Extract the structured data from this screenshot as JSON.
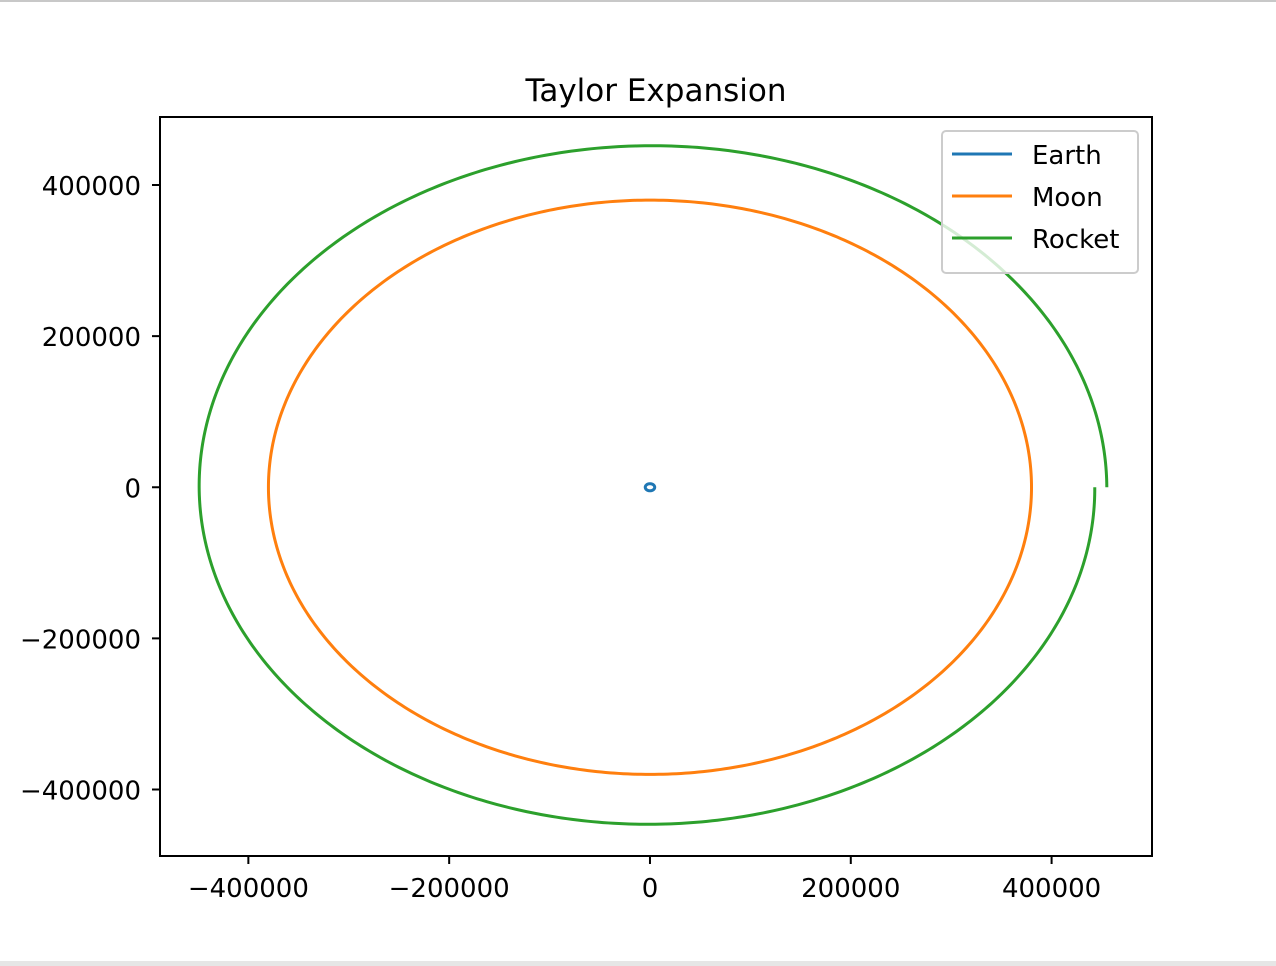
{
  "chart_data": {
    "type": "line",
    "title": "Taylor Expansion",
    "xlabel": "",
    "ylabel": "",
    "xlim": [
      -488000,
      500000
    ],
    "ylim": [
      -488000,
      490000
    ],
    "xticks": [
      -400000,
      -200000,
      0,
      200000,
      400000
    ],
    "yticks": [
      -400000,
      -200000,
      0,
      200000,
      400000
    ],
    "xtick_labels": [
      "−400000",
      "−200000",
      "0",
      "200000",
      "400000"
    ],
    "ytick_labels": [
      "−400000",
      "−200000",
      "0",
      "200000",
      "400000"
    ],
    "grid": false,
    "legend_position": "top-right",
    "series": [
      {
        "name": "Earth",
        "color": "#1f77b4",
        "shape": "orbit",
        "center": [
          0,
          0
        ],
        "radius": 4700,
        "start_deg": 0,
        "sweep_deg": 360,
        "drift": 0
      },
      {
        "name": "Moon",
        "color": "#ff7f0e",
        "shape": "orbit",
        "center": [
          0,
          0
        ],
        "radius": 380000,
        "start_deg": 0,
        "sweep_deg": 360,
        "drift": 0
      },
      {
        "name": "Rocket",
        "color": "#2ca02c",
        "shape": "orbit",
        "center": [
          0,
          0
        ],
        "radius": 455000,
        "start_deg": 0,
        "sweep_deg": 360,
        "drift": -12000
      }
    ]
  }
}
